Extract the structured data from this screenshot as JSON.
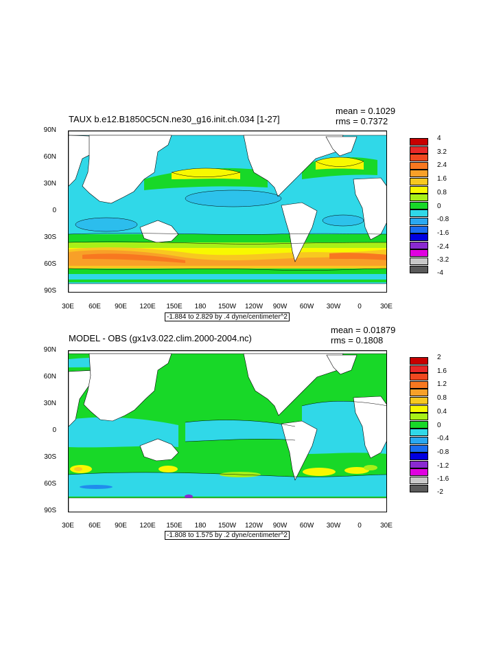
{
  "lon_labels": [
    "30E",
    "60E",
    "90E",
    "120E",
    "150E",
    "180",
    "150W",
    "120W",
    "90W",
    "60W",
    "30W",
    "0",
    "30E"
  ],
  "lat_labels": [
    "90N",
    "60N",
    "30N",
    "0",
    "30S",
    "60S",
    "90S"
  ],
  "colors": {
    "land": "#ffffff",
    "palette": [
      "#5a5a5a",
      "#c8c8c8",
      "#e000e0",
      "#8a2ad0",
      "#0000e0",
      "#1a6cf0",
      "#2aa8f0",
      "#30d8e8",
      "#28f0d0",
      "#18d828",
      "#a8f018",
      "#f8f800",
      "#f8c820",
      "#f8a028",
      "#f87820",
      "#f04820",
      "#e82828",
      "#c80000"
    ]
  },
  "panel1": {
    "title": "TAUX b.e12.B1850C5CN.ne30_g16.init.ch.034 [1-27]",
    "mean": "mean = 0.1029",
    "rms": "rms = 0.7372",
    "range_label": "-1.884 to 2.829 by .4 dyne/centimeter^2",
    "legend_labels": [
      "4",
      "3.2",
      "2.4",
      "1.6",
      "0.8",
      "0",
      "-0.8",
      "-1.6",
      "-2.4",
      "-3.2",
      "-4"
    ],
    "legend_colors": [
      "#c80000",
      "#e82828",
      "#f04820",
      "#f87820",
      "#f8a028",
      "#f8c820",
      "#f8f800",
      "#a8f018",
      "#18d828",
      "#30d8e8",
      "#2aa8f0",
      "#1a6cf0",
      "#0000e0",
      "#8a2ad0",
      "#e000e0",
      "#c8c8c8",
      "#5a5a5a"
    ]
  },
  "panel2": {
    "title": "MODEL - OBS (gx1v3.022.clim.2000-2004.nc)",
    "mean": "mean = 0.01879",
    "rms": "rms = 0.1808",
    "range_label": "-1.808 to 1.575 by .2 dyne/centimeter^2",
    "legend_labels": [
      "2",
      "1.6",
      "1.2",
      "0.8",
      "0.4",
      "0",
      "-0.4",
      "-0.8",
      "-1.2",
      "-1.6",
      "-2"
    ],
    "legend_colors": [
      "#c80000",
      "#e82828",
      "#f04820",
      "#f87820",
      "#f8a028",
      "#f8c820",
      "#f8f800",
      "#a8f018",
      "#18d828",
      "#30d8e8",
      "#2aa8f0",
      "#1a6cf0",
      "#0000e0",
      "#8a2ad0",
      "#e000e0",
      "#c8c8c8",
      "#5a5a5a"
    ]
  }
}
